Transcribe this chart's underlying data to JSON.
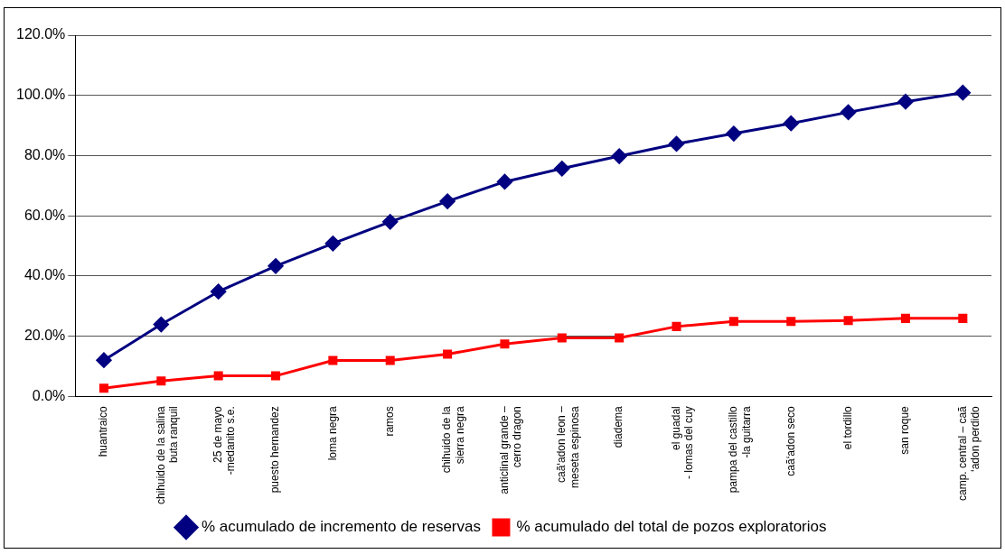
{
  "chart_data": {
    "type": "line",
    "categories": [
      "huantraico",
      "chihuido de la salina\nbuta ranquil",
      "25 de mayo\n-medanito s.e.",
      "puesto hernandez",
      "loma negra",
      "ramos",
      "chihuido de la\nsierra negra",
      "anticlinal grande –\ncerro dragon",
      "caã‘adon leon –\nmeseta espinosa",
      "diadema",
      "el guadal\n- lomas del cuy",
      "pampa del castillo\n-la guitarra",
      "caã‘adon seco",
      "el tordillo",
      "san roque",
      "camp. central – caã\n‘adon perdido"
    ],
    "series": [
      {
        "name": "% acumulado de incremento de reservas",
        "color": "#000080",
        "marker": "diamond",
        "values": [
          12,
          23.9,
          34.8,
          43.3,
          50.8,
          58,
          64.8,
          71.3,
          75.7,
          79.8,
          83.9,
          87.3,
          90.7,
          94.4,
          97.9,
          100.9
        ]
      },
      {
        "name": "% acumulado del total de pozos exploratorios",
        "color": "#ff0000",
        "marker": "square",
        "values": [
          2.7,
          5.1,
          6.8,
          6.8,
          11.9,
          11.9,
          14,
          17.4,
          19.4,
          19.4,
          23.2,
          24.9,
          24.9,
          25.2,
          25.9,
          25.9
        ]
      }
    ],
    "ylim": [
      0,
      120
    ],
    "yticks": [
      {
        "value": 0,
        "label": "0.0%"
      },
      {
        "value": 20,
        "label": "20.0%"
      },
      {
        "value": 40,
        "label": "40.0%"
      },
      {
        "value": 60,
        "label": "60.0%"
      },
      {
        "value": 80,
        "label": "80.0%"
      },
      {
        "value": 100,
        "label": "100.0%"
      },
      {
        "value": 120,
        "label": "120.0%"
      }
    ],
    "grid": "y",
    "legend": "bottom"
  }
}
